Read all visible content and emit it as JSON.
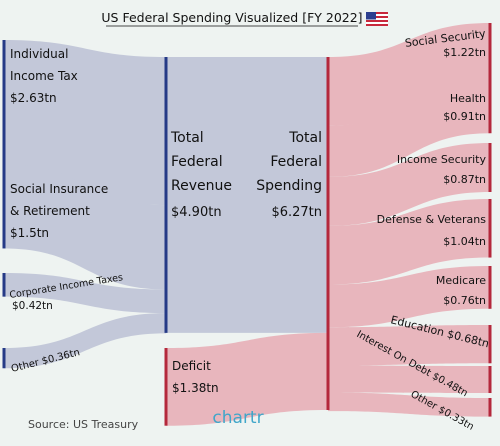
{
  "title": "US Federal Spending Visualized [FY 2022]",
  "flag_icon": "us-flag-icon",
  "colors": {
    "background": "#eef3f1",
    "revenue_fill": "#c3c8d9",
    "revenue_bar": "#253a86",
    "spending_fill": "#e8b6bd",
    "spending_bar": "#b4283c",
    "brand": "#40a6c9"
  },
  "revenue_sources": [
    {
      "name_lines": [
        "Individual",
        "Income Tax"
      ],
      "value": "$2.63tn",
      "amount": 2.63
    },
    {
      "name_lines": [
        "Social Insurance",
        "& Retirement"
      ],
      "value": "$1.5tn",
      "amount": 1.5
    },
    {
      "name": "Corporate Income Taxes",
      "value": "$0.42tn",
      "amount": 0.42
    },
    {
      "name": "Other",
      "value": "$0.36tn",
      "amount": 0.36
    }
  ],
  "total_revenue": {
    "lines": [
      "Total",
      "Federal",
      "Revenue"
    ],
    "value": "$4.90tn",
    "amount": 4.9
  },
  "total_spending": {
    "lines": [
      "Total",
      "Federal",
      "Spending"
    ],
    "value": "$6.27tn",
    "amount": 6.27
  },
  "deficit": {
    "name": "Deficit",
    "value": "$1.38tn",
    "amount": 1.38
  },
  "spending": [
    {
      "name": "Social Security",
      "value": "$1.22tn",
      "amount": 1.22
    },
    {
      "name": "Health",
      "value": "$0.91tn",
      "amount": 0.91
    },
    {
      "name": "Income Security",
      "value": "$0.87tn",
      "amount": 0.87
    },
    {
      "name": "Defense & Veterans",
      "value": "$1.04tn",
      "amount": 1.04
    },
    {
      "name": "Medicare",
      "value": "$0.76tn",
      "amount": 0.76
    },
    {
      "name": "Education",
      "value": "$0.68tn",
      "amount": 0.68
    },
    {
      "name": "Interest On Debt",
      "value": "$0.48tn",
      "amount": 0.48
    },
    {
      "name": "Other",
      "value": "$0.33tn",
      "amount": 0.33
    }
  ],
  "source": "Source: US Treasury",
  "brand": "chartr"
}
